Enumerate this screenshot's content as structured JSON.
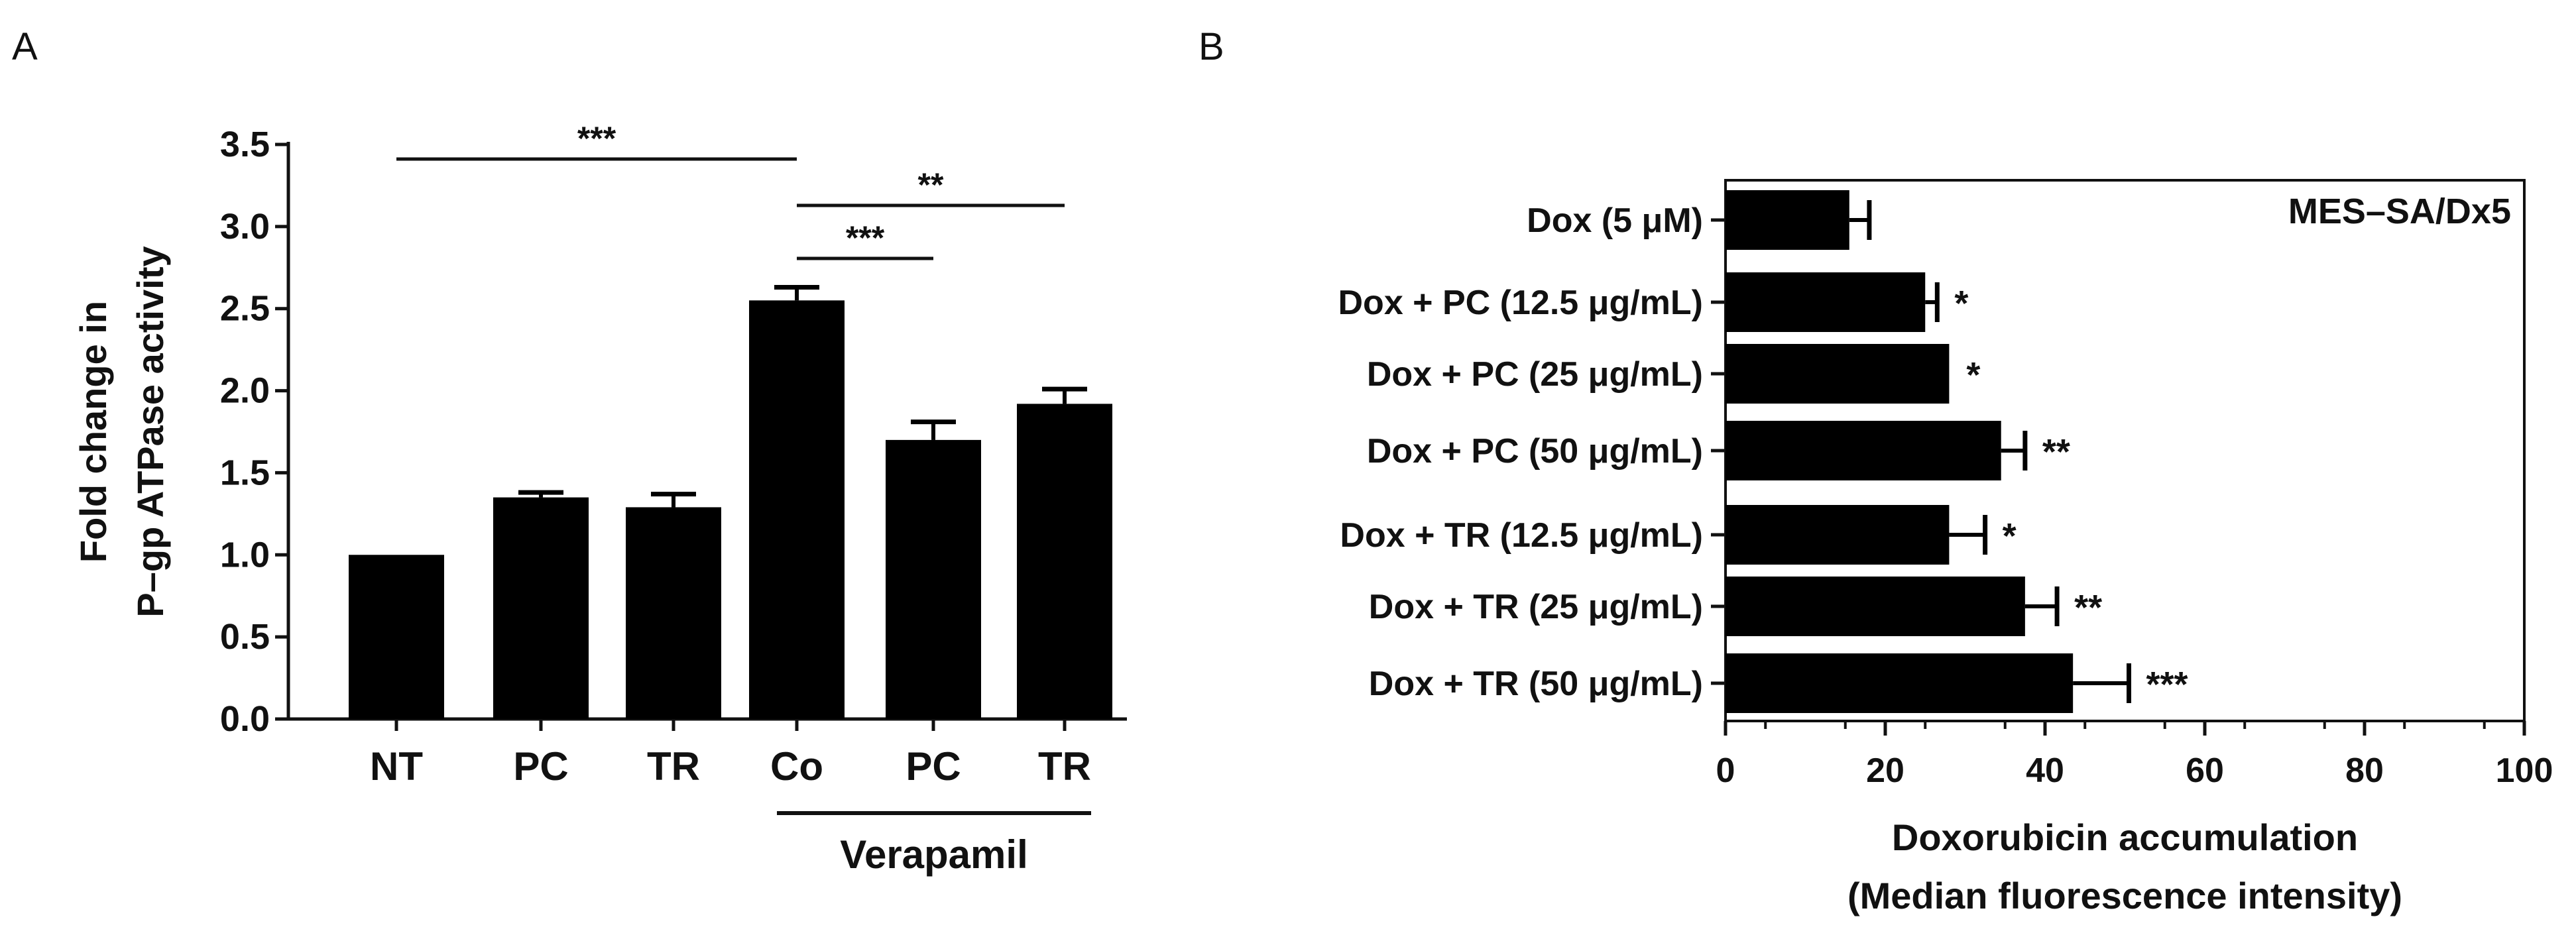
{
  "chart_data": [
    {
      "panel": "A",
      "type": "bar",
      "categories": [
        "NT",
        "PC",
        "TR",
        "Co",
        "PC",
        "TR"
      ],
      "values": [
        1.0,
        1.35,
        1.29,
        2.55,
        1.7,
        1.92
      ],
      "errors": [
        0.0,
        0.03,
        0.08,
        0.08,
        0.11,
        0.09
      ],
      "ylabel": [
        "Fold change in",
        "P–gp ATPase activity"
      ],
      "ylim": [
        0,
        3.5
      ],
      "yticks": [
        "0.0",
        "0.5",
        "1.0",
        "1.5",
        "2.0",
        "2.5",
        "3.0",
        "3.5"
      ],
      "group_label": "Verapamil",
      "group_categories": [
        3,
        5
      ],
      "significance": [
        {
          "from": 0,
          "to": 3,
          "label": "***"
        },
        {
          "from": 3,
          "to": 4,
          "label": "***"
        },
        {
          "from": 3,
          "to": 5,
          "label": "**"
        }
      ]
    },
    {
      "panel": "B",
      "type": "bar",
      "orientation": "horizontal",
      "categories": [
        "Dox (5 μM)",
        "Dox + PC (12.5 μg/mL)",
        "Dox + PC (25 μg/mL)",
        "Dox + PC (50 μg/mL)",
        "Dox + TR (12.5 μg/mL)",
        "Dox + TR (25 μg/mL)",
        "Dox + TR (50 μg/mL)"
      ],
      "values": [
        15.5,
        25,
        28,
        34.5,
        28,
        37.5,
        43.5
      ],
      "errors": [
        2.5,
        1.5,
        0,
        3,
        4.5,
        4,
        7
      ],
      "significance": [
        "",
        "*",
        "*",
        "**",
        "*",
        "**",
        "***"
      ],
      "xlim": [
        0,
        100
      ],
      "xticks": [
        "0",
        "20",
        "40",
        "60",
        "80",
        "100"
      ],
      "xlabel": [
        "Doxorubicin accumulation",
        "(Median fluorescence intensity)"
      ],
      "annotation": "MES–SA/Dx5"
    }
  ]
}
